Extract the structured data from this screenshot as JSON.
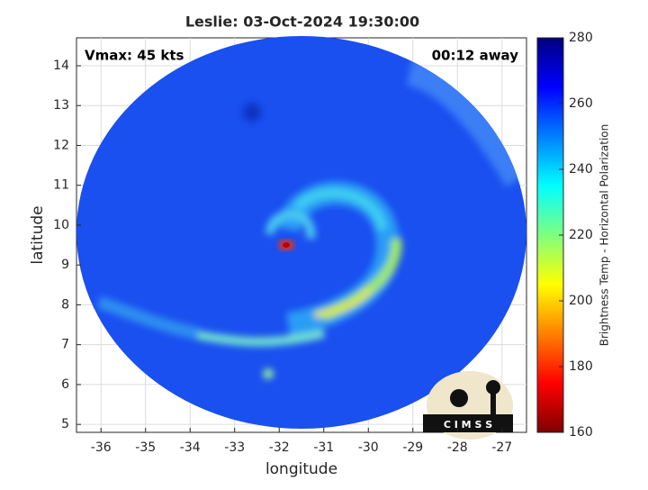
{
  "chart_data": {
    "type": "image",
    "title": "Leslie: 03-Oct-2024 19:30:00",
    "annotations": [
      "Vmax: 45 kts",
      "00:12 away"
    ],
    "x_label": "longitude",
    "y_label": "latitude",
    "xlim": [
      -36.55,
      -26.45
    ],
    "xticks": [
      -36,
      -35,
      -34,
      -33,
      -32,
      -31,
      -30,
      -29,
      -28,
      -27
    ],
    "ylim": [
      4.8,
      14.7
    ],
    "yticks": [
      5,
      6,
      7,
      8,
      9,
      10,
      11,
      12,
      13,
      14
    ],
    "grid": true,
    "colorbar": {
      "label": "Brightness Temp - Horizontal Polarization",
      "lim": [
        160,
        280
      ],
      "ticks": [
        160,
        180,
        200,
        220,
        240,
        260,
        280
      ]
    },
    "logo_text": "C I M S S"
  }
}
